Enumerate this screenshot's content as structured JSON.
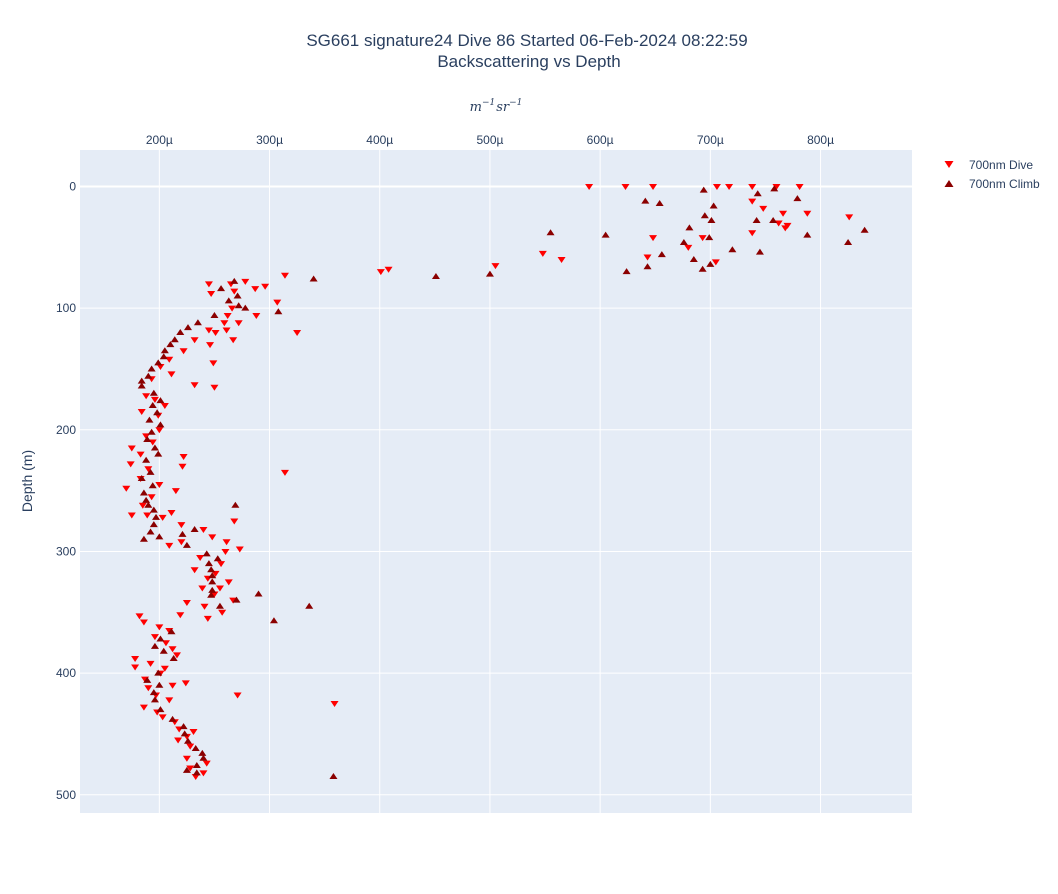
{
  "chart_data": {
    "type": "scatter",
    "title": "SG661 signature24 Dive 86 Started 06-Feb-2024 08:22:59",
    "subtitle": "Backscattering vs Depth",
    "xlabel_base": "m",
    "xlabel_base_exp": "−1",
    "xlabel_unit": "sr",
    "xlabel_unit_exp": "−1",
    "ylabel": "Depth (m)",
    "x_axis_side": "top",
    "y_reversed": true,
    "xlim": [
      0.000128,
      0.000883
    ],
    "ylim": [
      -30,
      515
    ],
    "x_ticks": [
      0.0002,
      0.0003,
      0.0004,
      0.0005,
      0.0006,
      0.0007,
      0.0008
    ],
    "x_tick_labels": [
      "200µ",
      "300µ",
      "400µ",
      "500µ",
      "600µ",
      "700µ",
      "800µ"
    ],
    "y_ticks": [
      0,
      100,
      200,
      300,
      400,
      500
    ],
    "y_tick_labels": [
      "0",
      "100",
      "200",
      "300",
      "400",
      "500"
    ],
    "grid": true,
    "legend_position": "top-right",
    "colors": {
      "background": "#e5ecf6",
      "grid": "#ffffff",
      "dive": "#ff0000",
      "climb": "#8b0000"
    },
    "series": [
      {
        "name": "700nm Dive",
        "marker": "triangle-down",
        "color": "#ff0000",
        "points": [
          [
            0.00059,
            0
          ],
          [
            0.000623,
            0
          ],
          [
            0.000648,
            0
          ],
          [
            0.000706,
            0
          ],
          [
            0.000717,
            0
          ],
          [
            0.000738,
            0
          ],
          [
            0.00076,
            0
          ],
          [
            0.000781,
            0
          ],
          [
            0.000738,
            12
          ],
          [
            0.000748,
            18
          ],
          [
            0.000766,
            22
          ],
          [
            0.000788,
            22
          ],
          [
            0.000826,
            25
          ],
          [
            0.00077,
            32
          ],
          [
            0.000762,
            30
          ],
          [
            0.000768,
            34
          ],
          [
            0.000738,
            38
          ],
          [
            0.000648,
            42
          ],
          [
            0.000693,
            42
          ],
          [
            0.00068,
            50
          ],
          [
            0.000548,
            55
          ],
          [
            0.000565,
            60
          ],
          [
            0.000643,
            58
          ],
          [
            0.000705,
            62
          ],
          [
            0.000505,
            65
          ],
          [
            0.000408,
            68
          ],
          [
            0.000401,
            70
          ],
          [
            0.000314,
            73
          ],
          [
            0.000245,
            80
          ],
          [
            0.000265,
            80
          ],
          [
            0.000278,
            78
          ],
          [
            0.000287,
            84
          ],
          [
            0.000296,
            82
          ],
          [
            0.000247,
            88
          ],
          [
            0.000268,
            86
          ],
          [
            0.000307,
            95
          ],
          [
            0.000266,
            100
          ],
          [
            0.000262,
            106
          ],
          [
            0.000288,
            106
          ],
          [
            0.000259,
            112
          ],
          [
            0.000272,
            112
          ],
          [
            0.000245,
            118
          ],
          [
            0.000251,
            120
          ],
          [
            0.000261,
            118
          ],
          [
            0.000325,
            120
          ],
          [
            0.000232,
            126
          ],
          [
            0.000246,
            130
          ],
          [
            0.000267,
            126
          ],
          [
            0.000222,
            135
          ],
          [
            0.000209,
            142
          ],
          [
            0.000201,
            148
          ],
          [
            0.000211,
            154
          ],
          [
            0.000249,
            145
          ],
          [
            0.000193,
            158
          ],
          [
            0.000232,
            163
          ],
          [
            0.00025,
            165
          ],
          [
            0.000188,
            172
          ],
          [
            0.000196,
            175
          ],
          [
            0.000184,
            185
          ],
          [
            0.000205,
            180
          ],
          [
            0.000199,
            188
          ],
          [
            0.0002,
            200
          ],
          [
            0.000188,
            205
          ],
          [
            0.000194,
            210
          ],
          [
            0.000175,
            215
          ],
          [
            0.000183,
            220
          ],
          [
            0.000222,
            222
          ],
          [
            0.000174,
            228
          ],
          [
            0.00019,
            232
          ],
          [
            0.000221,
            230
          ],
          [
            0.000314,
            235
          ],
          [
            0.000183,
            240
          ],
          [
            0.0002,
            245
          ],
          [
            0.00017,
            248
          ],
          [
            0.000193,
            255
          ],
          [
            0.000215,
            250
          ],
          [
            0.000185,
            262
          ],
          [
            0.000211,
            268
          ],
          [
            0.000175,
            270
          ],
          [
            0.000189,
            270
          ],
          [
            0.000203,
            272
          ],
          [
            0.000268,
            275
          ],
          [
            0.00022,
            278
          ],
          [
            0.00024,
            282
          ],
          [
            0.000248,
            288
          ],
          [
            0.00022,
            292
          ],
          [
            0.000261,
            292
          ],
          [
            0.000209,
            295
          ],
          [
            0.00026,
            300
          ],
          [
            0.000273,
            298
          ],
          [
            0.000237,
            305
          ],
          [
            0.000256,
            310
          ],
          [
            0.000232,
            315
          ],
          [
            0.000251,
            318
          ],
          [
            0.000244,
            322
          ],
          [
            0.000263,
            325
          ],
          [
            0.000255,
            330
          ],
          [
            0.000239,
            330
          ],
          [
            0.00025,
            335
          ],
          [
            0.000267,
            340
          ],
          [
            0.000225,
            342
          ],
          [
            0.000241,
            345
          ],
          [
            0.000257,
            350
          ],
          [
            0.000244,
            355
          ],
          [
            0.000219,
            352
          ],
          [
            0.000182,
            353
          ],
          [
            0.000186,
            358
          ],
          [
            0.0002,
            362
          ],
          [
            0.000209,
            365
          ],
          [
            0.000196,
            370
          ],
          [
            0.000206,
            375
          ],
          [
            0.000212,
            380
          ],
          [
            0.000216,
            385
          ],
          [
            0.000178,
            388
          ],
          [
            0.000192,
            392
          ],
          [
            0.000205,
            396
          ],
          [
            0.000178,
            395
          ],
          [
            0.000201,
            400
          ],
          [
            0.000187,
            405
          ],
          [
            0.000224,
            408
          ],
          [
            0.00019,
            412
          ],
          [
            0.000212,
            410
          ],
          [
            0.000271,
            418
          ],
          [
            0.000197,
            418
          ],
          [
            0.000209,
            422
          ],
          [
            0.000359,
            425
          ],
          [
            0.000186,
            428
          ],
          [
            0.000198,
            432
          ],
          [
            0.000203,
            436
          ],
          [
            0.000214,
            440
          ],
          [
            0.000218,
            446
          ],
          [
            0.000231,
            448
          ],
          [
            0.000225,
            452
          ],
          [
            0.000217,
            455
          ],
          [
            0.000228,
            460
          ],
          [
            0.000225,
            470
          ],
          [
            0.000243,
            474
          ],
          [
            0.000228,
            478
          ],
          [
            0.00024,
            482
          ],
          [
            0.000233,
            485
          ]
        ]
      },
      {
        "name": "700nm Climb",
        "marker": "triangle-up",
        "color": "#8b0000",
        "points": [
          [
            0.000694,
            3
          ],
          [
            0.000758,
            2
          ],
          [
            0.000743,
            6
          ],
          [
            0.000779,
            10
          ],
          [
            0.000641,
            12
          ],
          [
            0.000654,
            14
          ],
          [
            0.000703,
            16
          ],
          [
            0.000695,
            24
          ],
          [
            0.000701,
            28
          ],
          [
            0.000742,
            28
          ],
          [
            0.000757,
            28
          ],
          [
            0.000788,
            40
          ],
          [
            0.00084,
            36
          ],
          [
            0.000825,
            46
          ],
          [
            0.000681,
            34
          ],
          [
            0.000555,
            38
          ],
          [
            0.000605,
            40
          ],
          [
            0.000699,
            42
          ],
          [
            0.00072,
            52
          ],
          [
            0.000656,
            56
          ],
          [
            0.000676,
            46
          ],
          [
            0.000745,
            54
          ],
          [
            0.000685,
            60
          ],
          [
            0.0007,
            64
          ],
          [
            0.000643,
            66
          ],
          [
            0.000693,
            68
          ],
          [
            0.000624,
            70
          ],
          [
            0.0005,
            72
          ],
          [
            0.000451,
            74
          ],
          [
            0.00034,
            76
          ],
          [
            0.000268,
            78
          ],
          [
            0.000256,
            84
          ],
          [
            0.000271,
            90
          ],
          [
            0.000263,
            94
          ],
          [
            0.000272,
            98
          ],
          [
            0.000308,
            103
          ],
          [
            0.00025,
            106
          ],
          [
            0.000278,
            100
          ],
          [
            0.000235,
            112
          ],
          [
            0.000226,
            116
          ],
          [
            0.000219,
            120
          ],
          [
            0.000214,
            126
          ],
          [
            0.00021,
            130
          ],
          [
            0.000205,
            135
          ],
          [
            0.000204,
            140
          ],
          [
            0.000199,
            145
          ],
          [
            0.000193,
            150
          ],
          [
            0.00019,
            156
          ],
          [
            0.000184,
            160
          ],
          [
            0.000184,
            164
          ],
          [
            0.000195,
            170
          ],
          [
            0.000201,
            176
          ],
          [
            0.000194,
            180
          ],
          [
            0.000198,
            186
          ],
          [
            0.000191,
            192
          ],
          [
            0.000201,
            196
          ],
          [
            0.000193,
            202
          ],
          [
            0.000189,
            208
          ],
          [
            0.000196,
            215
          ],
          [
            0.000199,
            220
          ],
          [
            0.000188,
            225
          ],
          [
            0.000192,
            235
          ],
          [
            0.000184,
            240
          ],
          [
            0.000194,
            246
          ],
          [
            0.000186,
            252
          ],
          [
            0.000188,
            258
          ],
          [
            0.00019,
            262
          ],
          [
            0.000195,
            266
          ],
          [
            0.000197,
            272
          ],
          [
            0.000195,
            278
          ],
          [
            0.000192,
            284
          ],
          [
            0.0002,
            288
          ],
          [
            0.000269,
            262
          ],
          [
            0.000186,
            290
          ],
          [
            0.000221,
            286
          ],
          [
            0.000232,
            282
          ],
          [
            0.000225,
            295
          ],
          [
            0.000243,
            302
          ],
          [
            0.000253,
            306
          ],
          [
            0.000245,
            310
          ],
          [
            0.000247,
            315
          ],
          [
            0.000248,
            320
          ],
          [
            0.000248,
            325
          ],
          [
            0.000248,
            332
          ],
          [
            0.000247,
            336
          ],
          [
            0.00029,
            335
          ],
          [
            0.00027,
            340
          ],
          [
            0.000255,
            345
          ],
          [
            0.000336,
            345
          ],
          [
            0.000304,
            357
          ],
          [
            0.000211,
            366
          ],
          [
            0.000201,
            372
          ],
          [
            0.000196,
            378
          ],
          [
            0.000204,
            382
          ],
          [
            0.000213,
            388
          ],
          [
            0.000199,
            400
          ],
          [
            0.000189,
            406
          ],
          [
            0.0002,
            410
          ],
          [
            0.000195,
            416
          ],
          [
            0.000196,
            422
          ],
          [
            0.000201,
            430
          ],
          [
            0.000212,
            438
          ],
          [
            0.000222,
            444
          ],
          [
            0.000223,
            450
          ],
          [
            0.000226,
            456
          ],
          [
            0.000233,
            462
          ],
          [
            0.000239,
            466
          ],
          [
            0.00024,
            470
          ],
          [
            0.000234,
            476
          ],
          [
            0.000225,
            480
          ],
          [
            0.000234,
            482
          ],
          [
            0.000358,
            485
          ]
        ]
      }
    ]
  }
}
